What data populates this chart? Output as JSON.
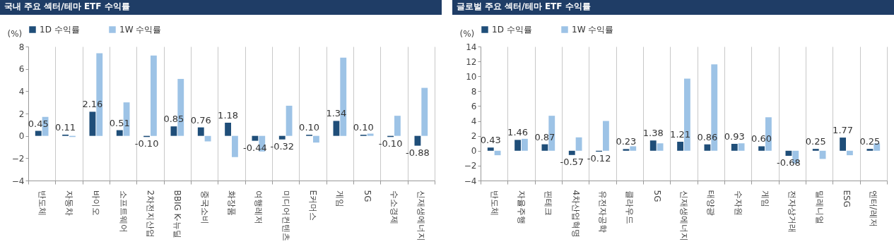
{
  "chart_data": [
    {
      "type": "bar",
      "title": "국내 주요 섹터/테마 ETF 수익률",
      "ylabel": "(%)",
      "categories": [
        "반도체",
        "자동차",
        "바이오",
        "소프트웨어",
        "2차전지산업",
        "BBIG K-뉴딜",
        "중국소비",
        "화장품",
        "여행레저",
        "미디어컨텐츠",
        "E커머스",
        "게임",
        "5G",
        "수소경제",
        "신재생에너지"
      ],
      "series": [
        {
          "name": "1D 수익률",
          "color": "#1f4e79",
          "values": [
            0.45,
            0.11,
            2.16,
            0.51,
            -0.1,
            0.85,
            0.76,
            1.18,
            -0.44,
            -0.32,
            0.1,
            1.34,
            0.1,
            -0.1,
            -0.88
          ],
          "value_labels": [
            "0.45",
            "0.11",
            "2.16",
            "0.51",
            "-0.10",
            "0.85",
            "0.76",
            "1.18",
            "-0.44",
            "-0.32",
            "0.10",
            "1.34",
            "0.10",
            "-0.10",
            "-0.88"
          ]
        },
        {
          "name": "1W 수익률",
          "color": "#9dc3e6",
          "values": [
            1.7,
            -0.1,
            7.4,
            3.0,
            7.2,
            5.1,
            -0.5,
            -1.9,
            -1.4,
            2.7,
            -0.6,
            7.0,
            0.2,
            1.8,
            4.3
          ]
        }
      ],
      "ylim": [
        -4,
        8
      ],
      "yticks": [
        -4,
        -2,
        0,
        2,
        4,
        6,
        8
      ],
      "grid": "x",
      "legend": "top"
    },
    {
      "type": "bar",
      "title": "글로벌 주요 섹터/테마 ETF 수익률",
      "ylabel": "(%)",
      "categories": [
        "반도체",
        "자율주행",
        "핀테크",
        "4차산업혁명",
        "유전자공학",
        "클라우드",
        "5G",
        "신재생에너지",
        "태양광",
        "수자원",
        "게임",
        "전자상거래",
        "밀레니얼",
        "ESG",
        "엔터/레저"
      ],
      "series": [
        {
          "name": "1D 수익률",
          "color": "#1f4e79",
          "values": [
            0.43,
            1.46,
            0.87,
            -0.57,
            -0.12,
            0.23,
            1.38,
            1.21,
            0.86,
            0.93,
            0.6,
            -0.68,
            0.25,
            1.77,
            0.25
          ],
          "value_labels": [
            "0.43",
            "1.46",
            "0.87",
            "-0.57",
            "-0.12",
            "0.23",
            "1.38",
            "1.21",
            "0.86",
            "0.93",
            "0.60",
            "-0.68",
            "0.25",
            "1.77",
            "0.25"
          ]
        },
        {
          "name": "1W 수익률",
          "color": "#9dc3e6",
          "values": [
            -0.6,
            1.6,
            4.7,
            1.8,
            4.0,
            0.6,
            1.0,
            9.7,
            11.6,
            1.0,
            4.5,
            -1.7,
            -1.1,
            -0.6,
            1.0
          ]
        }
      ],
      "ylim": [
        -4,
        14
      ],
      "yticks": [
        -4,
        -2,
        0,
        2,
        4,
        6,
        8,
        10,
        12,
        14
      ],
      "grid": "x",
      "legend": "top"
    }
  ]
}
